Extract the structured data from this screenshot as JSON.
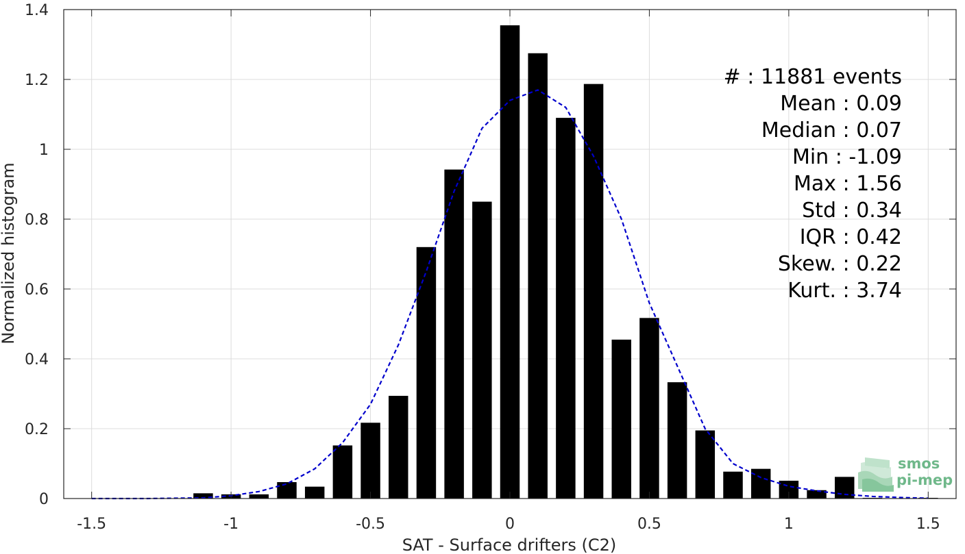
{
  "chart_data": {
    "type": "bar",
    "xlabel": "SAT - Surface drifters (C2)",
    "ylabel": "Normalized histogram",
    "xlim": [
      -1.6,
      1.6
    ],
    "ylim": [
      0,
      1.4
    ],
    "xticks": [
      -1.5,
      -1,
      -0.5,
      0,
      0.5,
      1,
      1.5
    ],
    "xtick_labels": [
      "-1.5",
      "-1",
      "-0.5",
      "0",
      "0.5",
      "1",
      "1.5"
    ],
    "yticks": [
      0,
      0.2,
      0.4,
      0.6,
      0.8,
      1,
      1.2,
      1.4
    ],
    "ytick_labels": [
      "0",
      "0.2",
      "0.4",
      "0.6",
      "0.8",
      "1",
      "1.2",
      "1.4"
    ],
    "grid": true,
    "bar_width": 0.07,
    "bars": {
      "x": [
        -1.1,
        -1.0,
        -0.9,
        -0.8,
        -0.7,
        -0.6,
        -0.5,
        -0.4,
        -0.3,
        -0.2,
        -0.1,
        0.0,
        0.1,
        0.2,
        0.3,
        0.4,
        0.5,
        0.6,
        0.7,
        0.8,
        0.9,
        1.0,
        1.1,
        1.2,
        1.3,
        1.5
      ],
      "values": [
        0.015,
        0.012,
        0.012,
        0.047,
        0.034,
        0.152,
        0.217,
        0.294,
        0.72,
        0.942,
        0.85,
        1.355,
        1.275,
        1.09,
        1.187,
        0.455,
        0.517,
        0.333,
        0.195,
        0.077,
        0.085,
        0.051,
        0.024,
        0.062,
        0.002,
        0.002
      ],
      "color": "#000000"
    },
    "fit_curve": {
      "style": "dashed",
      "color": "#0000cc",
      "x": [
        -1.5,
        -1.3,
        -1.1,
        -1.0,
        -0.9,
        -0.8,
        -0.7,
        -0.6,
        -0.5,
        -0.4,
        -0.3,
        -0.2,
        -0.1,
        0.0,
        0.1,
        0.2,
        0.3,
        0.4,
        0.5,
        0.6,
        0.7,
        0.8,
        0.9,
        1.0,
        1.1,
        1.2,
        1.3,
        1.4,
        1.5
      ],
      "y": [
        0.0,
        0.0,
        0.002,
        0.008,
        0.02,
        0.042,
        0.085,
        0.16,
        0.27,
        0.44,
        0.65,
        0.88,
        1.06,
        1.14,
        1.17,
        1.12,
        0.98,
        0.8,
        0.56,
        0.38,
        0.2,
        0.1,
        0.06,
        0.035,
        0.022,
        0.012,
        0.006,
        0.003,
        0.001
      ]
    },
    "annotations": [
      "#  : 11881 events",
      "Mean : 0.09",
      "Median : 0.07",
      "Min : -1.09",
      "Max : 1.56",
      "Std : 0.34",
      "IQR : 0.42",
      "Skew. : 0.22",
      "Kurt. : 3.74"
    ]
  },
  "logo": {
    "line1": "smos",
    "line2": "pi-mep",
    "color": "#6fb88a"
  }
}
